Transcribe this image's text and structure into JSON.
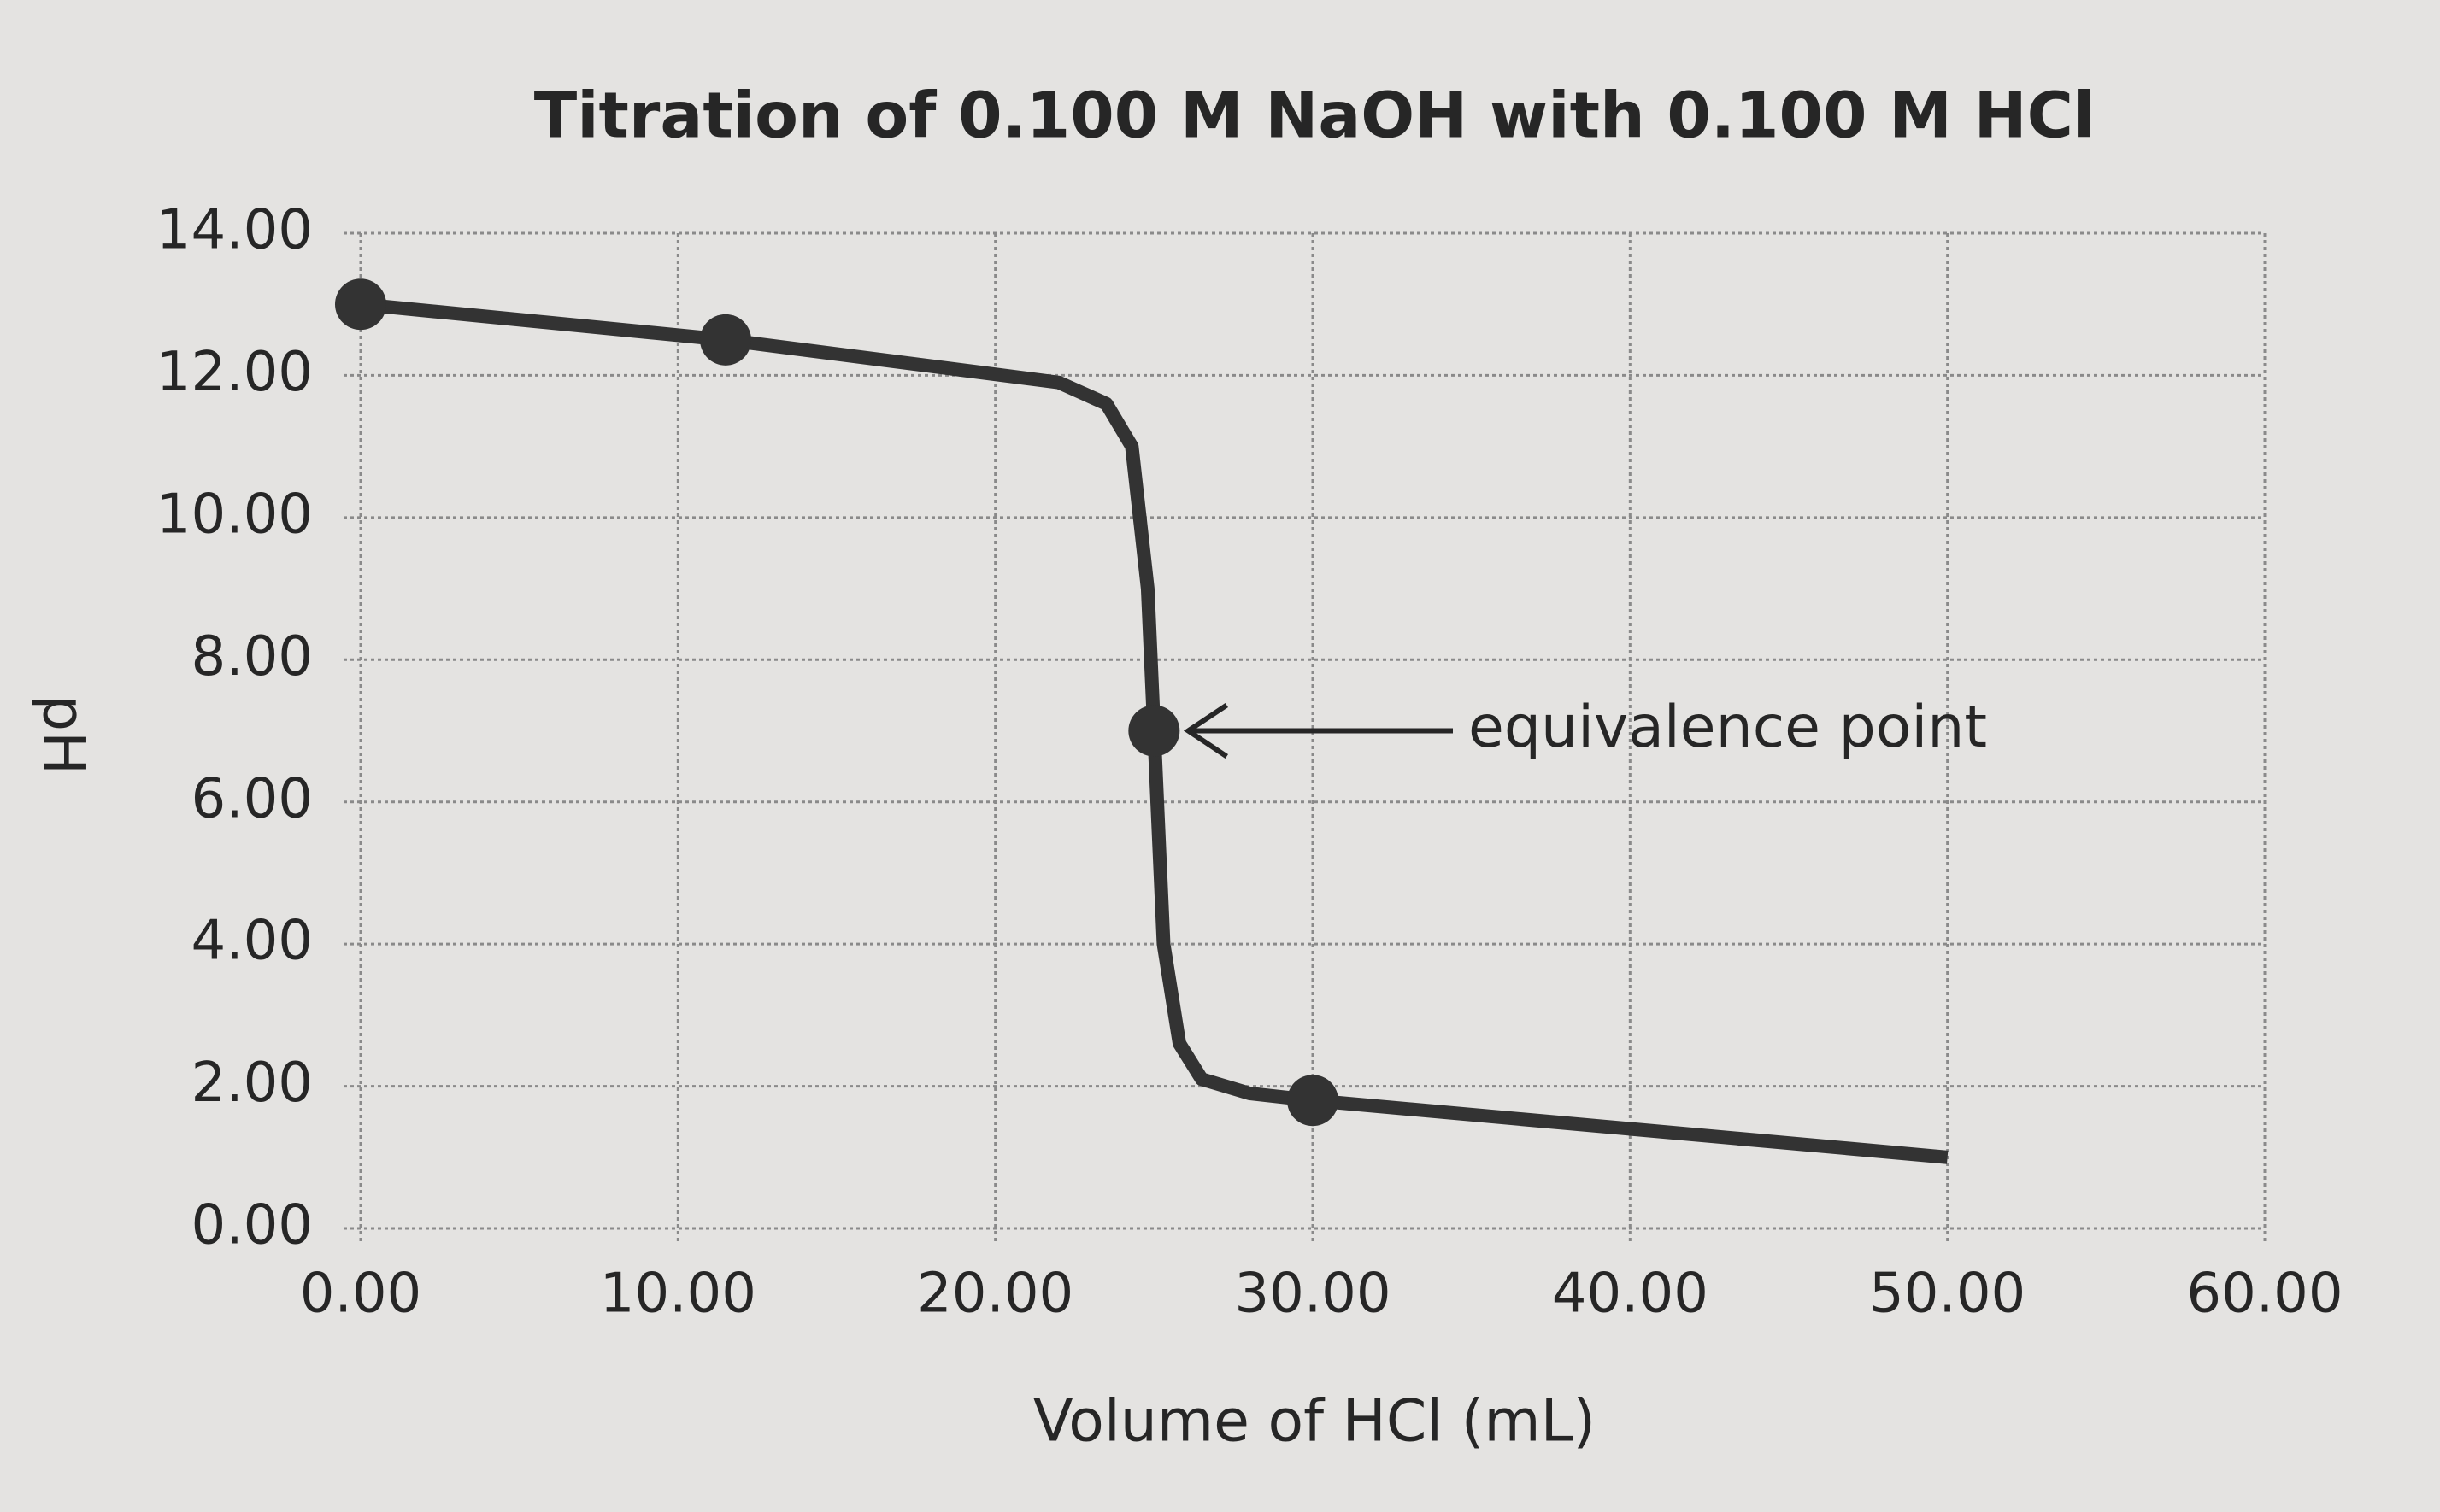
{
  "chart_data": {
    "type": "line",
    "title": "Titration of 0.100 M NaOH with 0.100 M HCl",
    "x_label": "Volume of HCl (mL)",
    "y_label": "pH",
    "series": [
      {
        "color": "#333333",
        "x": [
          0,
          11.5,
          22,
          23.5,
          24.3,
          24.8,
          25,
          25.3,
          25.8,
          26.5,
          28,
          30,
          40,
          50
        ],
        "values": [
          13.0,
          12.5,
          11.9,
          11.6,
          11.0,
          9.0,
          7.0,
          4.0,
          2.6,
          2.1,
          1.9,
          1.8,
          1.4,
          1.0
        ]
      },
      {
        "color": "#333333",
        "marker": true,
        "x": [
          0,
          11.5,
          25,
          30
        ],
        "values": [
          13.0,
          12.5,
          7.0,
          1.8
        ]
      }
    ],
    "annotation": {
      "text": "equivalence point",
      "x": 25,
      "y": 7.0
    },
    "xlim": [
      0,
      60
    ],
    "ylim": [
      0,
      14
    ],
    "xticks": [
      {
        "value": 0,
        "label": "0.00"
      },
      {
        "value": 10,
        "label": "10.00"
      },
      {
        "value": 20,
        "label": "20.00"
      },
      {
        "value": 30,
        "label": "30.00"
      },
      {
        "value": 40,
        "label": "40.00"
      },
      {
        "value": 50,
        "label": "50.00"
      },
      {
        "value": 60,
        "label": "60.00"
      }
    ],
    "yticks": [
      {
        "value": 0,
        "label": "0.00"
      },
      {
        "value": 2,
        "label": "2.00"
      },
      {
        "value": 4,
        "label": "4.00"
      },
      {
        "value": 6,
        "label": "6.00"
      },
      {
        "value": 8,
        "label": "8.00"
      },
      {
        "value": 10,
        "label": "10.00"
      },
      {
        "value": 12,
        "label": "12.00"
      },
      {
        "value": 14,
        "label": "14.00"
      }
    ],
    "grid": true
  }
}
